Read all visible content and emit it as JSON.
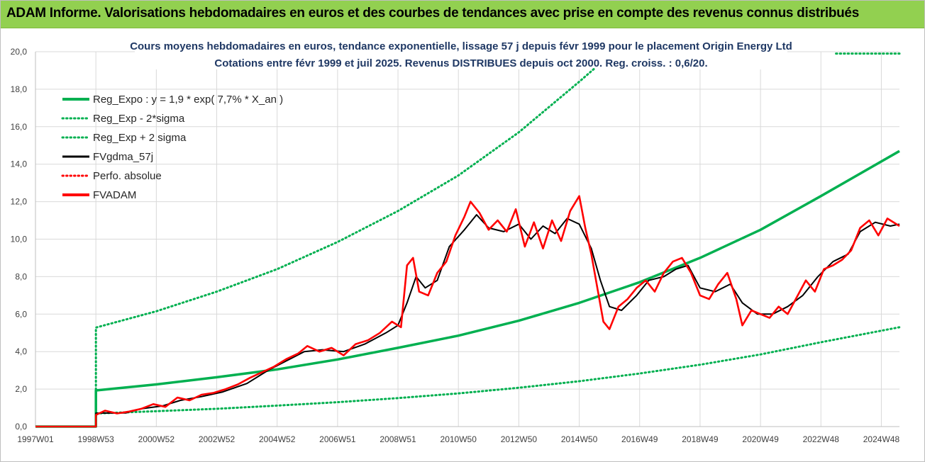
{
  "header": {
    "title": "ADAM Informe. Valorisations hebdomadaires en euros et des courbes de tendances avec prise en compte des revenus connus distribués"
  },
  "chart_data": {
    "type": "line",
    "title_line1": "Cours moyens hebdomadaires en euros, tendance exponentielle, lissage 57 j depuis févr 1999 pour le placement Origin Energy Ltd",
    "title_line2": "Cotations entre févr 1999 et juil 2025. Revenus DISTRIBUES depuis oct 2000. Reg. croiss. : 0,6/20.",
    "xlabel": "",
    "ylabel": "",
    "x_range": [
      1997.0,
      2025.6
    ],
    "ylim": [
      0,
      20
    ],
    "grid": true,
    "legend_position": "top-left",
    "y_ticks": [
      "0,0",
      "2,0",
      "4,0",
      "6,0",
      "8,0",
      "10,0",
      "12,0",
      "14,0",
      "16,0",
      "18,0",
      "20,0"
    ],
    "x_ticks": [
      {
        "x": 1997.0,
        "label": "1997W01"
      },
      {
        "x": 1999.0,
        "label": "1998W53"
      },
      {
        "x": 2001.0,
        "label": "2000W52"
      },
      {
        "x": 2003.0,
        "label": "2002W52"
      },
      {
        "x": 2005.0,
        "label": "2004W52"
      },
      {
        "x": 2007.0,
        "label": "2006W51"
      },
      {
        "x": 2009.0,
        "label": "2008W51"
      },
      {
        "x": 2011.0,
        "label": "2010W50"
      },
      {
        "x": 2013.0,
        "label": "2012W50"
      },
      {
        "x": 2015.0,
        "label": "2014W50"
      },
      {
        "x": 2017.0,
        "label": "2016W49"
      },
      {
        "x": 2019.0,
        "label": "2018W49"
      },
      {
        "x": 2021.0,
        "label": "2020W49"
      },
      {
        "x": 2023.0,
        "label": "2022W48"
      },
      {
        "x": 2025.0,
        "label": "2024W48"
      }
    ],
    "series": [
      {
        "name": "Reg_Expo : y = 1,9 * exp( 7,7% *  X_an )",
        "color": "#00b050",
        "style": "solid",
        "points": [
          [
            1997.0,
            0
          ],
          [
            1999.0,
            0
          ],
          [
            1999.0,
            1.93
          ],
          [
            2001,
            2.25
          ],
          [
            2003,
            2.63
          ],
          [
            2005,
            3.05
          ],
          [
            2007,
            3.58
          ],
          [
            2009,
            4.2
          ],
          [
            2011,
            4.85
          ],
          [
            2013,
            5.65
          ],
          [
            2015,
            6.6
          ],
          [
            2017,
            7.7
          ],
          [
            2019,
            9.0
          ],
          [
            2021,
            10.5
          ],
          [
            2023,
            12.3
          ],
          [
            2025.6,
            14.7
          ]
        ]
      },
      {
        "name": "Reg_Exp - 2*sigma",
        "color": "#00b050",
        "style": "dotted",
        "points": [
          [
            1997.0,
            0
          ],
          [
            1999.0,
            0
          ],
          [
            1999.0,
            0.7
          ],
          [
            2001,
            0.82
          ],
          [
            2003,
            0.95
          ],
          [
            2005,
            1.12
          ],
          [
            2007,
            1.3
          ],
          [
            2009,
            1.52
          ],
          [
            2011,
            1.77
          ],
          [
            2013,
            2.07
          ],
          [
            2015,
            2.42
          ],
          [
            2017,
            2.83
          ],
          [
            2019,
            3.3
          ],
          [
            2021,
            3.85
          ],
          [
            2023,
            4.5
          ],
          [
            2025.6,
            5.3
          ]
        ]
      },
      {
        "name": "Reg_Exp + 2 sigma",
        "color": "#00b050",
        "style": "dotted",
        "points": [
          [
            1997.0,
            0
          ],
          [
            1999.0,
            0
          ],
          [
            1999.0,
            5.28
          ],
          [
            2001,
            6.15
          ],
          [
            2003,
            7.2
          ],
          [
            2005,
            8.4
          ],
          [
            2007,
            9.85
          ],
          [
            2009,
            11.5
          ],
          [
            2011,
            13.4
          ],
          [
            2013,
            15.7
          ],
          [
            2015,
            18.4
          ],
          [
            2015.5,
            19.1
          ]
        ],
        "extra_segment": [
          [
            2023.5,
            19.9
          ],
          [
            2025.6,
            19.9
          ]
        ]
      },
      {
        "name": "FVgdma_57j",
        "color": "#000000",
        "style": "solid",
        "points": [
          [
            1997.0,
            0
          ],
          [
            1999.0,
            0
          ],
          [
            1999.0,
            0.72
          ],
          [
            2000.0,
            0.73
          ],
          [
            2000.5,
            0.95
          ],
          [
            2001.2,
            1.1
          ],
          [
            2001.8,
            1.4
          ],
          [
            2002.5,
            1.6
          ],
          [
            2003.2,
            1.85
          ],
          [
            2004.0,
            2.3
          ],
          [
            2004.7,
            3.0
          ],
          [
            2005.3,
            3.5
          ],
          [
            2005.9,
            4.0
          ],
          [
            2006.5,
            4.1
          ],
          [
            2007.2,
            4.0
          ],
          [
            2007.9,
            4.4
          ],
          [
            2008.6,
            5.0
          ],
          [
            2009.0,
            5.4
          ],
          [
            2009.3,
            6.6
          ],
          [
            2009.6,
            8.0
          ],
          [
            2009.9,
            7.4
          ],
          [
            2010.3,
            7.8
          ],
          [
            2010.7,
            9.6
          ],
          [
            2011.2,
            10.5
          ],
          [
            2011.6,
            11.3
          ],
          [
            2012.0,
            10.6
          ],
          [
            2012.5,
            10.4
          ],
          [
            2013.0,
            10.8
          ],
          [
            2013.4,
            10.0
          ],
          [
            2013.8,
            10.7
          ],
          [
            2014.2,
            10.3
          ],
          [
            2014.6,
            11.1
          ],
          [
            2015.0,
            10.8
          ],
          [
            2015.4,
            9.5
          ],
          [
            2015.7,
            7.8
          ],
          [
            2016.0,
            6.4
          ],
          [
            2016.4,
            6.2
          ],
          [
            2016.9,
            7.0
          ],
          [
            2017.3,
            7.8
          ],
          [
            2017.8,
            8.0
          ],
          [
            2018.2,
            8.4
          ],
          [
            2018.6,
            8.6
          ],
          [
            2019.0,
            7.4
          ],
          [
            2019.5,
            7.2
          ],
          [
            2020.0,
            7.6
          ],
          [
            2020.4,
            6.6
          ],
          [
            2020.9,
            6.0
          ],
          [
            2021.4,
            6.0
          ],
          [
            2021.9,
            6.4
          ],
          [
            2022.4,
            7.0
          ],
          [
            2022.9,
            8.0
          ],
          [
            2023.4,
            8.8
          ],
          [
            2023.9,
            9.2
          ],
          [
            2024.3,
            10.4
          ],
          [
            2024.8,
            10.9
          ],
          [
            2025.3,
            10.7
          ],
          [
            2025.6,
            10.8
          ]
        ]
      },
      {
        "name": "Perfo. absolue",
        "color": "#ff0000",
        "style": "dotted",
        "points": []
      },
      {
        "name": "FVADAM",
        "color": "#ff0000",
        "style": "solid",
        "points": [
          [
            1997.0,
            0
          ],
          [
            1999.0,
            0
          ],
          [
            1999.0,
            0.62
          ],
          [
            1999.3,
            0.85
          ],
          [
            1999.7,
            0.7
          ],
          [
            2000.1,
            0.8
          ],
          [
            2000.5,
            0.95
          ],
          [
            2000.9,
            1.2
          ],
          [
            2001.3,
            1.05
          ],
          [
            2001.7,
            1.55
          ],
          [
            2002.1,
            1.4
          ],
          [
            2002.5,
            1.7
          ],
          [
            2002.9,
            1.8
          ],
          [
            2003.3,
            2.0
          ],
          [
            2003.7,
            2.25
          ],
          [
            2004.1,
            2.6
          ],
          [
            2004.5,
            2.9
          ],
          [
            2004.9,
            3.2
          ],
          [
            2005.3,
            3.6
          ],
          [
            2005.7,
            3.9
          ],
          [
            2006.0,
            4.3
          ],
          [
            2006.4,
            4.0
          ],
          [
            2006.8,
            4.2
          ],
          [
            2007.2,
            3.8
          ],
          [
            2007.6,
            4.4
          ],
          [
            2008.0,
            4.6
          ],
          [
            2008.4,
            5.0
          ],
          [
            2008.8,
            5.6
          ],
          [
            2009.1,
            5.3
          ],
          [
            2009.3,
            8.6
          ],
          [
            2009.5,
            9.0
          ],
          [
            2009.7,
            7.2
          ],
          [
            2010.0,
            7.0
          ],
          [
            2010.3,
            8.2
          ],
          [
            2010.6,
            8.8
          ],
          [
            2010.9,
            10.2
          ],
          [
            2011.2,
            11.2
          ],
          [
            2011.4,
            12.0
          ],
          [
            2011.7,
            11.4
          ],
          [
            2012.0,
            10.5
          ],
          [
            2012.3,
            11.0
          ],
          [
            2012.6,
            10.4
          ],
          [
            2012.9,
            11.6
          ],
          [
            2013.2,
            9.6
          ],
          [
            2013.5,
            10.9
          ],
          [
            2013.8,
            9.5
          ],
          [
            2014.1,
            11.0
          ],
          [
            2014.4,
            9.9
          ],
          [
            2014.7,
            11.5
          ],
          [
            2015.0,
            12.3
          ],
          [
            2015.2,
            10.6
          ],
          [
            2015.4,
            9.2
          ],
          [
            2015.6,
            7.4
          ],
          [
            2015.8,
            5.6
          ],
          [
            2016.0,
            5.2
          ],
          [
            2016.3,
            6.4
          ],
          [
            2016.6,
            6.8
          ],
          [
            2016.9,
            7.4
          ],
          [
            2017.2,
            7.8
          ],
          [
            2017.5,
            7.2
          ],
          [
            2017.8,
            8.2
          ],
          [
            2018.1,
            8.8
          ],
          [
            2018.4,
            9.0
          ],
          [
            2018.7,
            8.2
          ],
          [
            2019.0,
            7.0
          ],
          [
            2019.3,
            6.8
          ],
          [
            2019.6,
            7.6
          ],
          [
            2019.9,
            8.2
          ],
          [
            2020.2,
            6.8
          ],
          [
            2020.4,
            5.4
          ],
          [
            2020.7,
            6.2
          ],
          [
            2021.0,
            6.0
          ],
          [
            2021.3,
            5.8
          ],
          [
            2021.6,
            6.4
          ],
          [
            2021.9,
            6.0
          ],
          [
            2022.2,
            6.9
          ],
          [
            2022.5,
            7.8
          ],
          [
            2022.8,
            7.2
          ],
          [
            2023.1,
            8.4
          ],
          [
            2023.4,
            8.6
          ],
          [
            2023.7,
            8.9
          ],
          [
            2024.0,
            9.4
          ],
          [
            2024.3,
            10.6
          ],
          [
            2024.6,
            11.0
          ],
          [
            2024.9,
            10.2
          ],
          [
            2025.2,
            11.1
          ],
          [
            2025.6,
            10.7
          ]
        ]
      }
    ]
  }
}
